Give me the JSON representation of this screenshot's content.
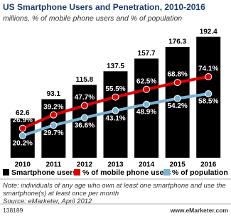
{
  "chart_data": {
    "type": "bar",
    "title": "US Smartphone Users and Penetration, 2010-2016",
    "subtitle": "millions, % of mobile phone users and % of population",
    "categories": [
      "2010",
      "2011",
      "2012",
      "2013",
      "2014",
      "2015",
      "2016"
    ],
    "ylim": [
      0,
      200
    ],
    "y2lim": [
      0,
      115
    ],
    "series": [
      {
        "name": "Smartphone users",
        "type": "bar",
        "color": "#000000",
        "values": [
          62.6,
          93.1,
          115.8,
          137.5,
          157.7,
          176.3,
          192.4
        ]
      },
      {
        "name": "% of mobile phone users",
        "type": "line",
        "axis": "y2",
        "color": "#e00000",
        "values": [
          26.9,
          39.2,
          47.7,
          55.5,
          62.5,
          68.8,
          74.1
        ],
        "value_labels": [
          "26.9%",
          "39.2%",
          "47.7%",
          "55.5%",
          "62.5%",
          "68.8%",
          "74.1%"
        ]
      },
      {
        "name": "% of population",
        "type": "line",
        "axis": "y2",
        "color": "#7ab3d4",
        "values": [
          20.2,
          29.7,
          36.6,
          43.1,
          48.9,
          54.2,
          58.5
        ],
        "value_labels": [
          "20.2%",
          "29.7%",
          "36.6%",
          "43.1%",
          "48.9%",
          "54.2%",
          "58.5%"
        ]
      }
    ],
    "note": "Note: individuals of any age who own at least one smartphone and use the smartphone(s) at least once per month",
    "source": "Source: eMarketer, April 2012",
    "id": "138189",
    "brand": "www.eMarketer.com"
  }
}
